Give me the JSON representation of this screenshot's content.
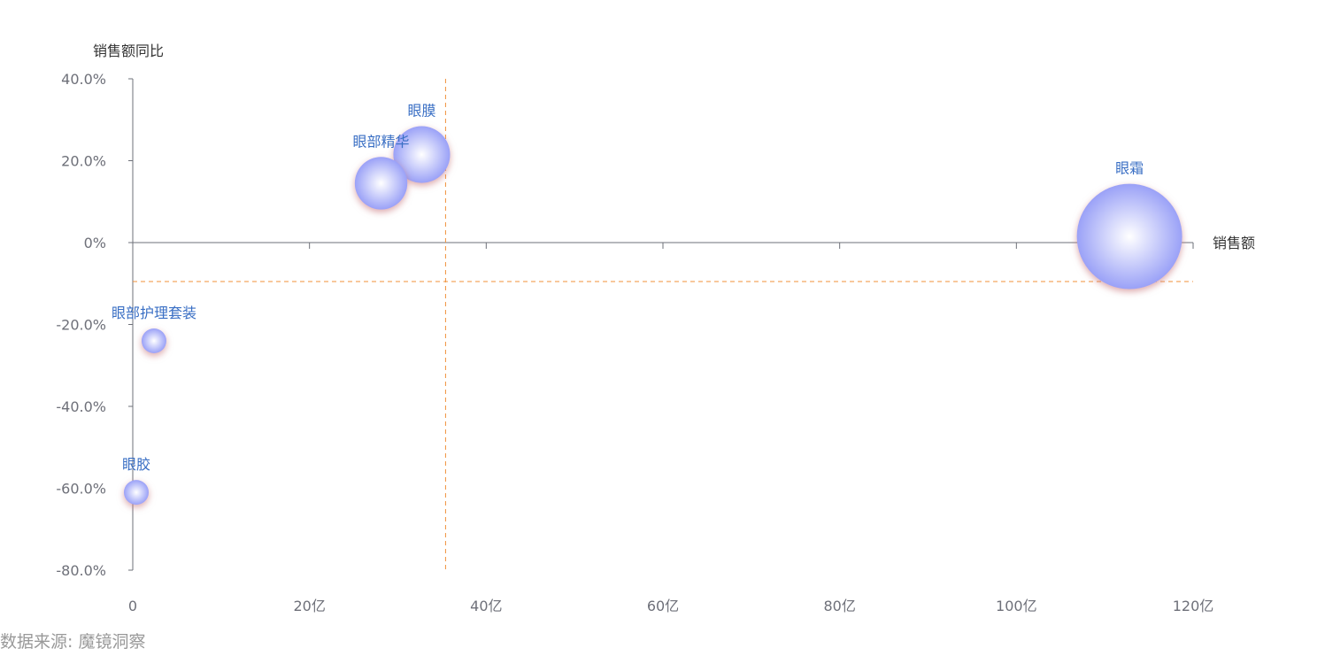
{
  "colors": {
    "bubble_center": "#ffffff",
    "bubble_edge": "#9aa1f7",
    "bubble_shadow": "#c9797e",
    "label": "#3a6fc4",
    "reference_line": "#f0913a",
    "axis": "#6e7079"
  },
  "source_text": "数据来源: 魔镜洞察",
  "chart_data": {
    "type": "scatter",
    "subtype": "bubble",
    "title": "",
    "xlabel": "销售额",
    "ylabel": "销售额同比",
    "xlim": [
      0,
      120
    ],
    "ylim": [
      -80,
      40
    ],
    "x_ticks": [
      0,
      20,
      40,
      60,
      80,
      100,
      120
    ],
    "x_tick_labels": [
      "0",
      "20亿",
      "40亿",
      "60亿",
      "80亿",
      "100亿",
      "120亿"
    ],
    "y_ticks": [
      40,
      20,
      0,
      -20,
      -40,
      -60,
      -80
    ],
    "y_tick_labels": [
      "40.0%",
      "20.0%",
      "0%",
      "-20.0%",
      "-40.0%",
      "-60.0%",
      "-80.0%"
    ],
    "reference_lines": {
      "x": 35.4,
      "y": -9.5
    },
    "points": [
      {
        "name": "眼膜",
        "x": 32.7,
        "y": 21.5,
        "size": 32.7
      },
      {
        "name": "眼部精华",
        "x": 28.1,
        "y": 14.5,
        "size": 28.1
      },
      {
        "name": "眼霜",
        "x": 112.8,
        "y": 1.5,
        "size": 112.8
      },
      {
        "name": "眼部护理套装",
        "x": 2.4,
        "y": -24.0,
        "size": 2.4
      },
      {
        "name": "眼胶",
        "x": 0.4,
        "y": -61.0,
        "size": 0.4
      }
    ]
  }
}
